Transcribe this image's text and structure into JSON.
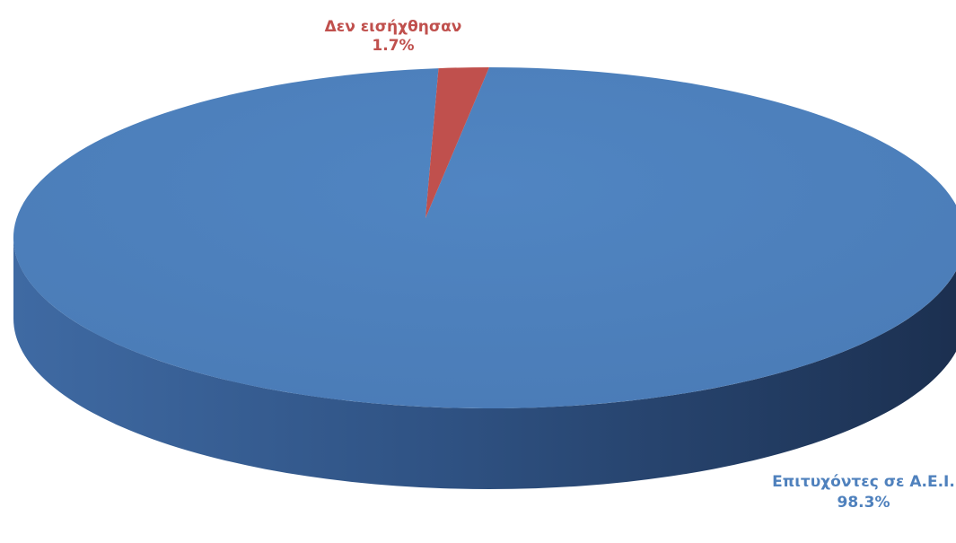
{
  "chart_data": {
    "type": "pie",
    "style": "3d",
    "categories": [
      "Επιτυχόντες σε Α.Ε.Ι.",
      "Δεν εισήχθησαν"
    ],
    "values": [
      98.3,
      1.7
    ],
    "value_labels": [
      "98.3%",
      "1.7%"
    ],
    "colors": {
      "Επιτυχόντες σε Α.Ε.Ι.": "#4F81BD",
      "Δεν εισήχθησαν": "#C0504D"
    },
    "label_colors": {
      "Επιτυχόντες σε Α.Ε.Ι.": "#4F81BD",
      "Δεν εισήχθησαν": "#C0504D"
    },
    "title": "",
    "legend": "none"
  }
}
